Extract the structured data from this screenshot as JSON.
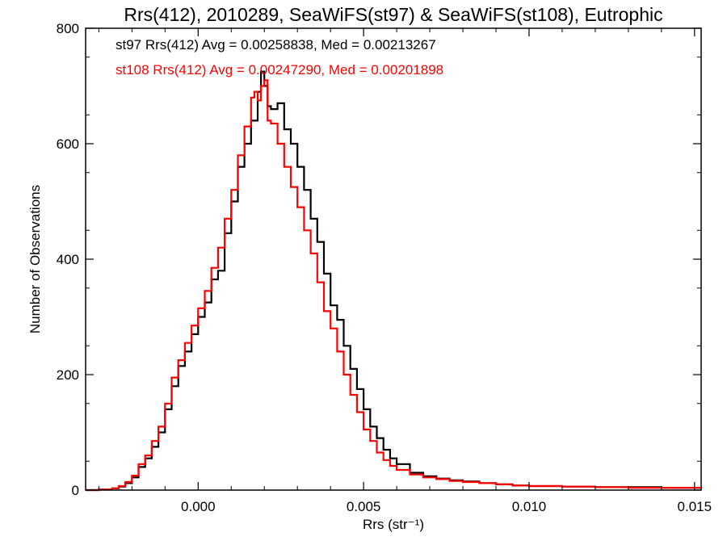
{
  "chart_data": {
    "type": "line",
    "title": "Rrs(412), 2010289, SeaWiFS(st97) & SeaWiFS(st108), Eutrophic",
    "xlabel": "Rrs (str⁻¹)",
    "ylabel": "Number of Observations",
    "xlim": [
      -0.0034,
      0.0152
    ],
    "ylim": [
      0,
      800
    ],
    "x_ticks": [
      0.0,
      0.005,
      0.01,
      0.015
    ],
    "x_tick_labels": [
      "0.000",
      "0.005",
      "0.010",
      "0.015"
    ],
    "y_ticks": [
      0,
      200,
      400,
      600,
      800
    ],
    "y_tick_labels": [
      "0",
      "200",
      "400",
      "600",
      "800"
    ],
    "annotations": [
      {
        "text": "st97 Rrs(412) Avg = 0.00258838, Med = 0.00213267",
        "color": "#000000"
      },
      {
        "text": "st108 Rrs(412) Avg = 0.00247290, Med = 0.00201898",
        "color": "#ff0000"
      }
    ],
    "series": [
      {
        "name": "st97",
        "color": "#000000",
        "points": [
          [
            -0.0034,
            0
          ],
          [
            -0.003,
            1
          ],
          [
            -0.0026,
            3
          ],
          [
            -0.0024,
            6
          ],
          [
            -0.0022,
            12
          ],
          [
            -0.002,
            22
          ],
          [
            -0.0018,
            40
          ],
          [
            -0.0016,
            55
          ],
          [
            -0.0014,
            75
          ],
          [
            -0.0012,
            100
          ],
          [
            -0.001,
            140
          ],
          [
            -0.0008,
            180
          ],
          [
            -0.0006,
            215
          ],
          [
            -0.0004,
            240
          ],
          [
            -0.0002,
            270
          ],
          [
            0.0,
            300
          ],
          [
            0.0002,
            325
          ],
          [
            0.0004,
            365
          ],
          [
            0.0006,
            380
          ],
          [
            0.0008,
            445
          ],
          [
            0.001,
            500
          ],
          [
            0.0012,
            560
          ],
          [
            0.0014,
            600
          ],
          [
            0.0016,
            640
          ],
          [
            0.0018,
            690
          ],
          [
            0.0019,
            725
          ],
          [
            0.002,
            700
          ],
          [
            0.0021,
            665
          ],
          [
            0.0022,
            660
          ],
          [
            0.0024,
            670
          ],
          [
            0.0026,
            625
          ],
          [
            0.0028,
            600
          ],
          [
            0.003,
            560
          ],
          [
            0.0032,
            520
          ],
          [
            0.0034,
            470
          ],
          [
            0.0036,
            430
          ],
          [
            0.0038,
            375
          ],
          [
            0.004,
            320
          ],
          [
            0.0042,
            295
          ],
          [
            0.0044,
            250
          ],
          [
            0.0046,
            210
          ],
          [
            0.0048,
            175
          ],
          [
            0.005,
            140
          ],
          [
            0.0052,
            110
          ],
          [
            0.0054,
            90
          ],
          [
            0.0056,
            70
          ],
          [
            0.0058,
            55
          ],
          [
            0.006,
            45
          ],
          [
            0.0064,
            30
          ],
          [
            0.0068,
            24
          ],
          [
            0.0072,
            20
          ],
          [
            0.0076,
            17
          ],
          [
            0.008,
            15
          ],
          [
            0.0085,
            12
          ],
          [
            0.009,
            10
          ],
          [
            0.0095,
            8
          ],
          [
            0.01,
            7
          ],
          [
            0.011,
            6
          ],
          [
            0.012,
            5
          ],
          [
            0.013,
            5
          ],
          [
            0.014,
            4
          ],
          [
            0.0152,
            3
          ]
        ]
      },
      {
        "name": "st108",
        "color": "#ff0000",
        "points": [
          [
            -0.0034,
            0
          ],
          [
            -0.003,
            1
          ],
          [
            -0.0026,
            3
          ],
          [
            -0.0024,
            7
          ],
          [
            -0.0022,
            14
          ],
          [
            -0.002,
            25
          ],
          [
            -0.0018,
            45
          ],
          [
            -0.0016,
            60
          ],
          [
            -0.0014,
            85
          ],
          [
            -0.0012,
            110
          ],
          [
            -0.001,
            150
          ],
          [
            -0.0008,
            195
          ],
          [
            -0.0006,
            225
          ],
          [
            -0.0004,
            255
          ],
          [
            -0.0002,
            285
          ],
          [
            0.0,
            315
          ],
          [
            0.0002,
            345
          ],
          [
            0.0004,
            385
          ],
          [
            0.0006,
            420
          ],
          [
            0.0008,
            470
          ],
          [
            0.001,
            520
          ],
          [
            0.0012,
            580
          ],
          [
            0.0014,
            630
          ],
          [
            0.0016,
            680
          ],
          [
            0.0017,
            690
          ],
          [
            0.0018,
            675
          ],
          [
            0.0019,
            700
          ],
          [
            0.002,
            710
          ],
          [
            0.0021,
            640
          ],
          [
            0.0022,
            635
          ],
          [
            0.0024,
            600
          ],
          [
            0.0026,
            560
          ],
          [
            0.0028,
            525
          ],
          [
            0.003,
            490
          ],
          [
            0.0032,
            450
          ],
          [
            0.0034,
            410
          ],
          [
            0.0036,
            360
          ],
          [
            0.0038,
            310
          ],
          [
            0.004,
            280
          ],
          [
            0.0042,
            240
          ],
          [
            0.0044,
            200
          ],
          [
            0.0046,
            165
          ],
          [
            0.0048,
            135
          ],
          [
            0.005,
            105
          ],
          [
            0.0052,
            85
          ],
          [
            0.0054,
            65
          ],
          [
            0.0056,
            52
          ],
          [
            0.0058,
            42
          ],
          [
            0.006,
            35
          ],
          [
            0.0064,
            27
          ],
          [
            0.0068,
            22
          ],
          [
            0.0072,
            19
          ],
          [
            0.0076,
            16
          ],
          [
            0.008,
            14
          ],
          [
            0.0085,
            12
          ],
          [
            0.009,
            10
          ],
          [
            0.0095,
            8
          ],
          [
            0.01,
            7
          ],
          [
            0.011,
            6
          ],
          [
            0.012,
            5
          ],
          [
            0.013,
            4
          ],
          [
            0.014,
            4
          ],
          [
            0.0152,
            3
          ]
        ]
      }
    ]
  }
}
